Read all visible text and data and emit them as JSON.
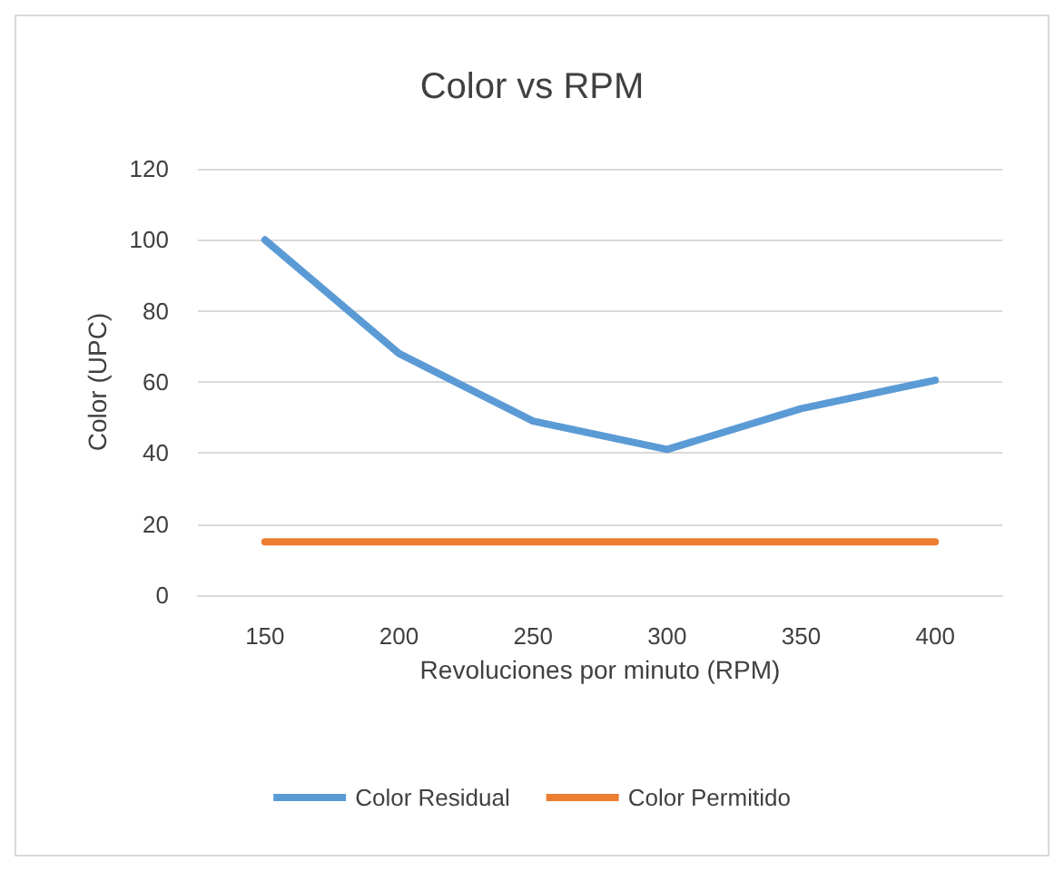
{
  "chart_data": {
    "type": "line",
    "title": "Color vs RPM",
    "xlabel": "Revoluciones por minuto (RPM)",
    "ylabel": "Color (UPC)",
    "categories": [
      "150",
      "200",
      "250",
      "300",
      "350",
      "400"
    ],
    "series": [
      {
        "name": "Color Residual",
        "color": "#5b9bd5",
        "values": [
          100,
          68,
          49,
          41,
          52.5,
          60.5
        ]
      },
      {
        "name": "Color Permitido",
        "color": "#ed7d31",
        "values": [
          15,
          15,
          15,
          15,
          15,
          15
        ]
      }
    ],
    "ylim": [
      0,
      120
    ],
    "yticks": [
      0,
      20,
      40,
      60,
      80,
      100,
      120
    ],
    "grid": "y",
    "legend": "bottom",
    "marker": "none",
    "line_style": "solid"
  }
}
